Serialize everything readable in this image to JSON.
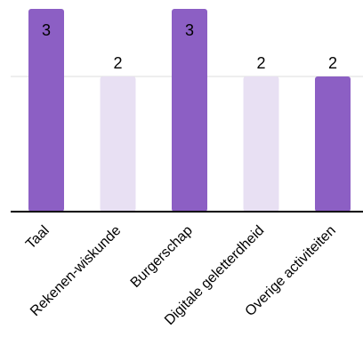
{
  "chart_data": {
    "type": "bar",
    "categories": [
      "Taal",
      "Rekenen-wiskunde",
      "Burgerschap",
      "Digitale geletterdheid",
      "Overige activiteiten"
    ],
    "values": [
      3,
      2,
      3,
      2,
      2
    ],
    "data_labels": [
      "3",
      "2",
      "3",
      "2",
      "2"
    ],
    "bar_colors": [
      "#8c5fc4",
      "#e8e0f3",
      "#8c5fc4",
      "#e8e0f3",
      "#8c5fc4"
    ],
    "ylim": [
      0,
      3
    ],
    "grid": true,
    "gridline_values": [
      2
    ],
    "title": "",
    "xlabel": "",
    "ylabel": ""
  }
}
